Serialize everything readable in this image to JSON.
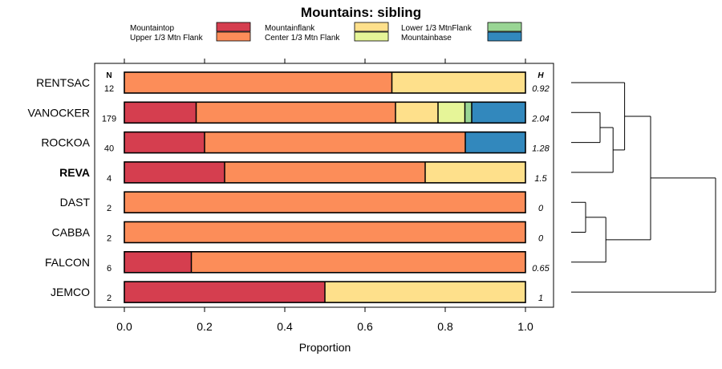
{
  "chart_data": {
    "type": "bar",
    "orientation": "horizontal",
    "stacked": true,
    "title": "Mountains: sibling",
    "xlabel": "Proportion",
    "ylabel": "",
    "xlim": [
      0,
      1
    ],
    "xticks": [
      "0.0",
      "0.2",
      "0.4",
      "0.6",
      "0.8",
      "1.0"
    ],
    "xtick_values": [
      0,
      0.2,
      0.4,
      0.6,
      0.8,
      1.0
    ],
    "n_header": "N",
    "h_header": "H",
    "legend": [
      {
        "name": "Mountaintop",
        "color": "#d53e4f"
      },
      {
        "name": "Upper 1/3 Mtn Flank",
        "color": "#fc8d59"
      },
      {
        "name": "Mountainflank",
        "color": "#fee08b"
      },
      {
        "name": "Center 1/3 Mtn Flank",
        "color": "#e6f598"
      },
      {
        "name": "Lower 1/3 MtnFlank",
        "color": "#99d594"
      },
      {
        "name": "Mountainbase",
        "color": "#3288bd"
      }
    ],
    "categories": [
      {
        "label": "RENTSAC",
        "n": "12",
        "h": "0.92",
        "bold": false,
        "segments": [
          {
            "series": "Upper 1/3 Mtn Flank",
            "value": 0.667
          },
          {
            "series": "Mountainflank",
            "value": 0.333
          }
        ]
      },
      {
        "label": "VANOCKER",
        "n": "179",
        "h": "2.04",
        "bold": false,
        "segments": [
          {
            "series": "Mountaintop",
            "value": 0.179
          },
          {
            "series": "Upper 1/3 Mtn Flank",
            "value": 0.497
          },
          {
            "series": "Mountainflank",
            "value": 0.106
          },
          {
            "series": "Center 1/3 Mtn Flank",
            "value": 0.067
          },
          {
            "series": "Lower 1/3 MtnFlank",
            "value": 0.017
          },
          {
            "series": "Mountainbase",
            "value": 0.134
          }
        ]
      },
      {
        "label": "ROCKOA",
        "n": "40",
        "h": "1.28",
        "bold": false,
        "segments": [
          {
            "series": "Mountaintop",
            "value": 0.2
          },
          {
            "series": "Upper 1/3 Mtn Flank",
            "value": 0.65
          },
          {
            "series": "Mountainbase",
            "value": 0.15
          }
        ]
      },
      {
        "label": "REVA",
        "n": "4",
        "h": "1.5",
        "bold": true,
        "segments": [
          {
            "series": "Mountaintop",
            "value": 0.25
          },
          {
            "series": "Upper 1/3 Mtn Flank",
            "value": 0.5
          },
          {
            "series": "Mountainflank",
            "value": 0.25
          }
        ]
      },
      {
        "label": "DAST",
        "n": "2",
        "h": "0",
        "bold": false,
        "segments": [
          {
            "series": "Upper 1/3 Mtn Flank",
            "value": 1.0
          }
        ]
      },
      {
        "label": "CABBA",
        "n": "2",
        "h": "0",
        "bold": false,
        "segments": [
          {
            "series": "Upper 1/3 Mtn Flank",
            "value": 1.0
          }
        ]
      },
      {
        "label": "FALCON",
        "n": "6",
        "h": "0.65",
        "bold": false,
        "segments": [
          {
            "series": "Mountaintop",
            "value": 0.167
          },
          {
            "series": "Upper 1/3 Mtn Flank",
            "value": 0.833
          }
        ]
      },
      {
        "label": "JEMCO",
        "n": "2",
        "h": "1",
        "bold": false,
        "segments": [
          {
            "series": "Mountaintop",
            "value": 0.5
          },
          {
            "series": "Mountainflank",
            "value": 0.5
          }
        ]
      }
    ],
    "dendrogram": {
      "merges": [
        {
          "a": "VANOCKER",
          "b": "ROCKOA",
          "height": 0.2
        },
        {
          "a": "DAST",
          "b": "CABBA",
          "height": 0.1
        },
        {
          "a": "#2",
          "b": "FALCON",
          "height": 0.24
        },
        {
          "a": "#1",
          "b": "REVA",
          "height": 0.29
        },
        {
          "a": "RENTSAC",
          "b": "#4",
          "height": 0.37
        },
        {
          "a": "#5",
          "b": "#3",
          "height": 0.55
        },
        {
          "a": "#6",
          "b": "JEMCO",
          "height": 1.0
        }
      ]
    }
  }
}
